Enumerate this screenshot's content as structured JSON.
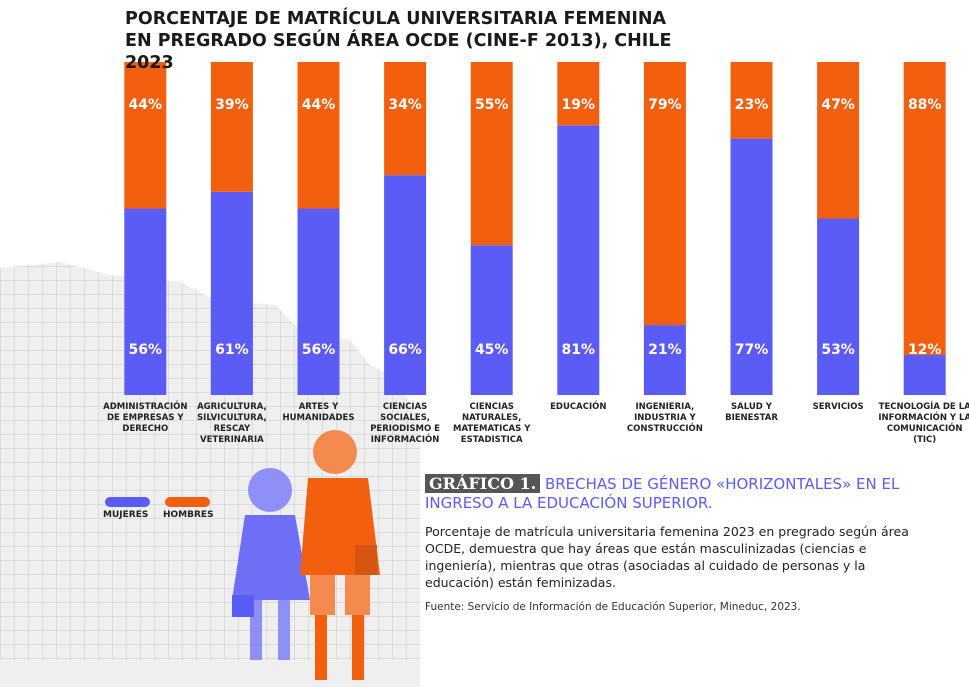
{
  "chart_data": {
    "type": "stacked_bar",
    "title": "PORCENTAJE DE MATRÍCULA UNIVERSITARIA FEMENINA EN PREGRADO SEGÚN ÁREA OCDE (CINE-F 2013), CHILE 2023",
    "categories": [
      "ADMINISTRACIÓN DE EMPRESAS Y DERECHO",
      "AGRICULTURA, SILVICULTURA, RESCAY VETERINARIA",
      "ARTES Y HUMANIDADES",
      "CIENCIAS SOCIALES, PERIODISMO E INFORMACIÓN",
      "CIENCIAS NATURALES, MATEMATICAS Y ESTADISTICA",
      "EDUCACIÓN",
      "INGENIERIA, INDUSTRIA Y CONSTRUCCIÓN",
      "SALUD Y BIENESTAR",
      "SERVICIOS",
      "TECNOLOGÍA DE LA INFORMACIÓN Y LA COMUNICACIÓN (TIC)"
    ],
    "series": [
      {
        "name": "MUJERES",
        "color": "#5b5cf6",
        "values": [
          56,
          61,
          56,
          66,
          45,
          81,
          21,
          77,
          53,
          12
        ],
        "value_labels": [
          "56%",
          "61%",
          "56%",
          "66%",
          "45%",
          "81%",
          "21%",
          "77%",
          "53%",
          "12%"
        ]
      },
      {
        "name": "HOMBRES",
        "color": "#f2600f",
        "values": [
          44,
          39,
          44,
          34,
          55,
          19,
          79,
          23,
          47,
          88
        ],
        "value_labels": [
          "44%",
          "39%",
          "44%",
          "34%",
          "55%",
          "19%",
          "79%",
          "23%",
          "47%",
          "88%"
        ]
      }
    ],
    "caption": {
      "label": "GRÁFICO 1.",
      "heading": "BRECHAS DE GÉNERO «HORIZONTALES» EN EL INGRESO A LA EDUCACIÓN SUPERIOR.",
      "description": "Porcentaje de matrícula universitaria femenina 2023 en pregrado según área OCDE, demuestra que hay áreas que están masculinizadas (ciencias e ingeniería), mientras que otras (asociadas al cuidado de personas y la educación) están feminizadas.",
      "source": "Fuente: Servicio de Información de Educación Superior, Mineduc, 2023."
    }
  }
}
